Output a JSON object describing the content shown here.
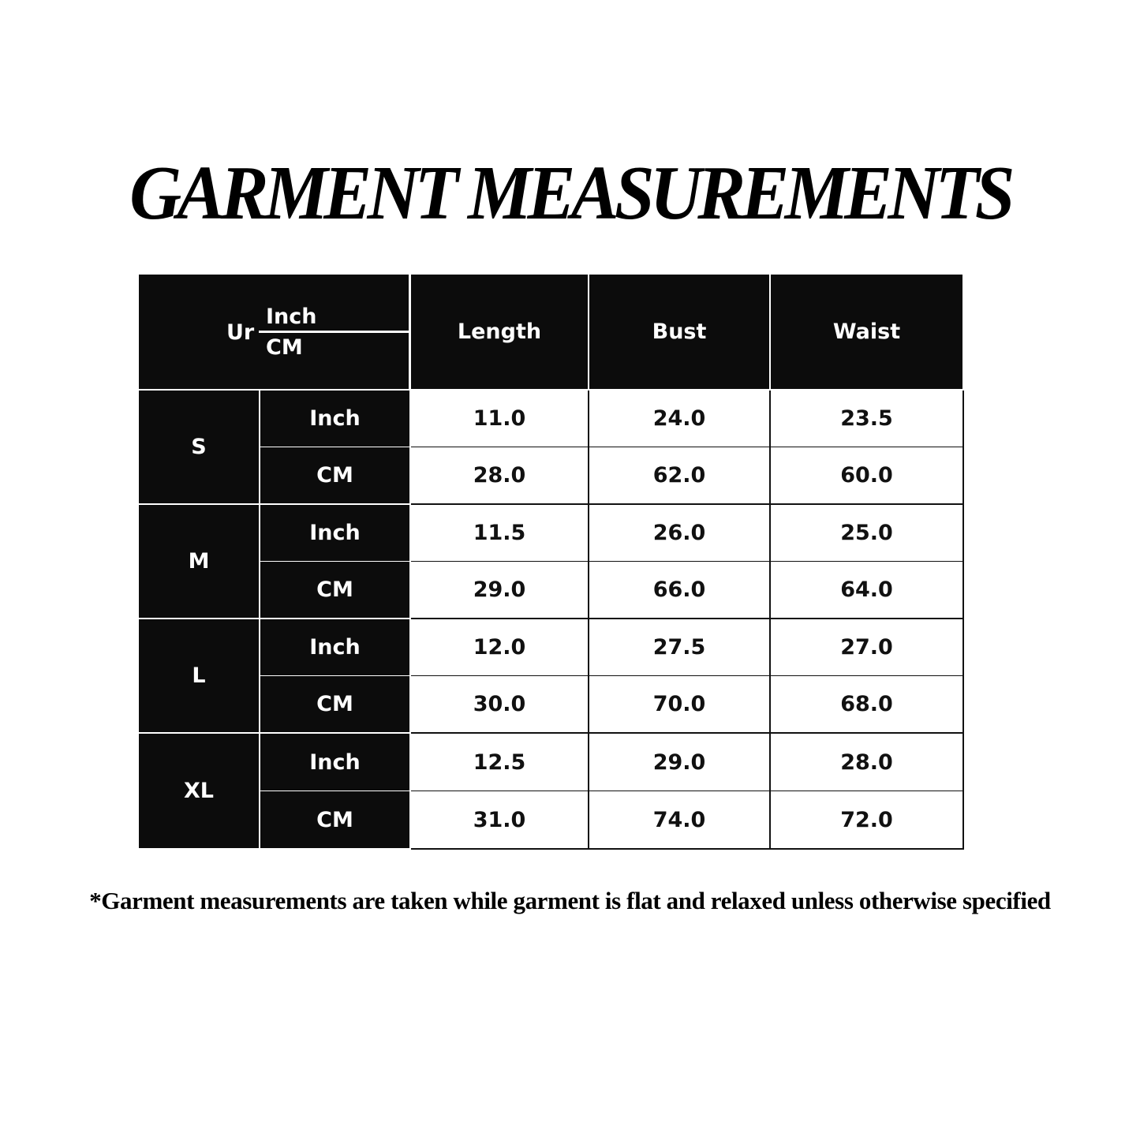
{
  "title": "GARMENT MEASUREMENTS",
  "table": {
    "corner": {
      "label": "Ur",
      "top": "Inch",
      "bottom": "CM"
    },
    "columns": [
      "Length",
      "Bust",
      "Waist"
    ],
    "sizes": [
      {
        "size": "S",
        "rows": [
          {
            "unit": "Inch",
            "values": [
              "11.0",
              "24.0",
              "23.5"
            ]
          },
          {
            "unit": "CM",
            "values": [
              "28.0",
              "62.0",
              "60.0"
            ]
          }
        ]
      },
      {
        "size": "M",
        "rows": [
          {
            "unit": "Inch",
            "values": [
              "11.5",
              "26.0",
              "25.0"
            ]
          },
          {
            "unit": "CM",
            "values": [
              "29.0",
              "66.0",
              "64.0"
            ]
          }
        ]
      },
      {
        "size": "L",
        "rows": [
          {
            "unit": "Inch",
            "values": [
              "12.0",
              "27.5",
              "27.0"
            ]
          },
          {
            "unit": "CM",
            "values": [
              "30.0",
              "70.0",
              "68.0"
            ]
          }
        ]
      },
      {
        "size": "XL",
        "rows": [
          {
            "unit": "Inch",
            "values": [
              "12.5",
              "29.0",
              "28.0"
            ]
          },
          {
            "unit": "CM",
            "values": [
              "31.0",
              "74.0",
              "72.0"
            ]
          }
        ]
      }
    ]
  },
  "footnote": "*Garment measurements are taken while garment is flat and relaxed unless otherwise specified"
}
